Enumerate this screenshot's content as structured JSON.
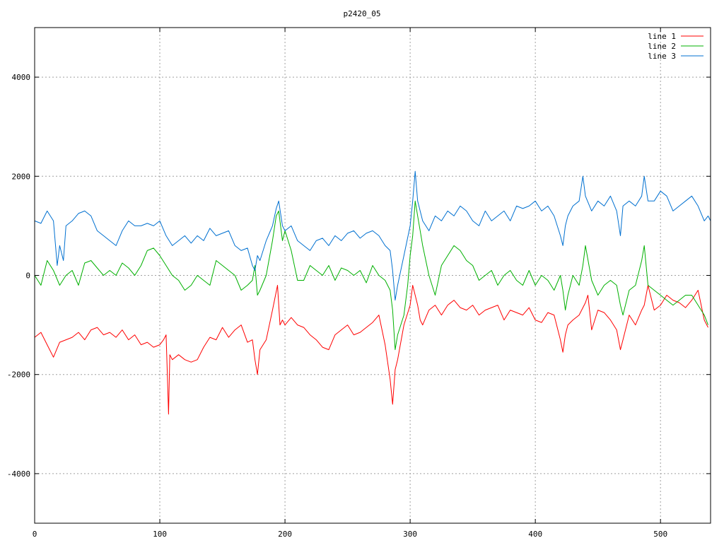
{
  "chart_data": {
    "type": "line",
    "title": "p2420_05",
    "xlabel": "",
    "ylabel": "",
    "xlim": [
      0,
      540
    ],
    "ylim": [
      -5000,
      5000
    ],
    "xticks": [
      0,
      100,
      200,
      300,
      400,
      500
    ],
    "yticks": [
      -4000,
      -2000,
      0,
      2000,
      4000
    ],
    "ytick_labels": [
      "-4000",
      "-2000",
      "0",
      "2000",
      "4000"
    ],
    "grid": true,
    "legend": "top-right",
    "series": [
      {
        "name": "line 1",
        "color": "#ff0000",
        "x": [
          0,
          5,
          10,
          15,
          20,
          25,
          30,
          35,
          40,
          45,
          50,
          55,
          60,
          65,
          70,
          75,
          80,
          85,
          90,
          95,
          100,
          103,
          105,
          106,
          107,
          108,
          110,
          115,
          120,
          125,
          130,
          135,
          140,
          145,
          150,
          155,
          160,
          165,
          170,
          174,
          176,
          178,
          180,
          185,
          190,
          194,
          196,
          198,
          200,
          205,
          210,
          215,
          220,
          225,
          230,
          235,
          240,
          245,
          250,
          255,
          260,
          265,
          270,
          275,
          280,
          284,
          286,
          288,
          290,
          295,
          300,
          302,
          304,
          306,
          308,
          310,
          315,
          320,
          325,
          330,
          335,
          340,
          345,
          350,
          355,
          360,
          365,
          370,
          375,
          380,
          385,
          390,
          395,
          400,
          405,
          410,
          415,
          420,
          422,
          424,
          426,
          430,
          435,
          440,
          442,
          445,
          450,
          455,
          460,
          465,
          468,
          470,
          475,
          480,
          485,
          487,
          490,
          495,
          500,
          505,
          510,
          515,
          520,
          525,
          530,
          535,
          538
        ],
        "y": [
          -1250,
          -1150,
          -1400,
          -1650,
          -1350,
          -1300,
          -1250,
          -1150,
          -1300,
          -1100,
          -1050,
          -1200,
          -1150,
          -1250,
          -1100,
          -1300,
          -1200,
          -1400,
          -1350,
          -1450,
          -1400,
          -1300,
          -1200,
          -2000,
          -2800,
          -1600,
          -1700,
          -1600,
          -1700,
          -1750,
          -1700,
          -1450,
          -1250,
          -1300,
          -1050,
          -1250,
          -1100,
          -1000,
          -1350,
          -1300,
          -1700,
          -2000,
          -1500,
          -1300,
          -700,
          -200,
          -1000,
          -900,
          -1000,
          -850,
          -1000,
          -1050,
          -1200,
          -1300,
          -1450,
          -1500,
          -1200,
          -1100,
          -1000,
          -1200,
          -1150,
          -1050,
          -950,
          -800,
          -1400,
          -2100,
          -2600,
          -1900,
          -1700,
          -1000,
          -600,
          -200,
          -400,
          -600,
          -900,
          -1000,
          -700,
          -600,
          -800,
          -600,
          -500,
          -650,
          -700,
          -600,
          -800,
          -700,
          -650,
          -600,
          -900,
          -700,
          -750,
          -800,
          -650,
          -900,
          -950,
          -750,
          -800,
          -1300,
          -1550,
          -1200,
          -1000,
          -900,
          -800,
          -550,
          -400,
          -1100,
          -700,
          -750,
          -900,
          -1100,
          -1500,
          -1300,
          -800,
          -1000,
          -700,
          -600,
          -200,
          -700,
          -600,
          -400,
          -500,
          -550,
          -650,
          -500,
          -300,
          -900,
          -1050
        ]
      },
      {
        "name": "line 2",
        "color": "#00b000",
        "x": [
          0,
          5,
          10,
          15,
          20,
          25,
          30,
          35,
          40,
          45,
          50,
          55,
          60,
          65,
          70,
          75,
          80,
          85,
          90,
          95,
          100,
          105,
          110,
          115,
          120,
          125,
          130,
          135,
          140,
          145,
          150,
          155,
          160,
          165,
          170,
          174,
          176,
          178,
          180,
          185,
          190,
          193,
          195,
          198,
          200,
          205,
          210,
          215,
          220,
          225,
          230,
          235,
          240,
          245,
          250,
          255,
          260,
          265,
          270,
          275,
          280,
          284,
          286,
          288,
          290,
          295,
          298,
          300,
          302,
          304,
          306,
          308,
          310,
          315,
          320,
          325,
          330,
          335,
          340,
          345,
          350,
          355,
          360,
          365,
          370,
          375,
          380,
          385,
          390,
          395,
          400,
          405,
          410,
          415,
          420,
          422,
          424,
          426,
          430,
          435,
          438,
          440,
          445,
          450,
          455,
          460,
          465,
          468,
          470,
          475,
          480,
          485,
          487,
          490,
          495,
          500,
          505,
          510,
          515,
          520,
          525,
          530,
          535,
          538
        ],
        "y": [
          0,
          -200,
          300,
          100,
          -200,
          0,
          100,
          -200,
          250,
          300,
          150,
          0,
          100,
          0,
          250,
          150,
          0,
          200,
          500,
          550,
          400,
          200,
          0,
          -100,
          -300,
          -200,
          0,
          -100,
          -200,
          300,
          200,
          100,
          0,
          -300,
          -200,
          -100,
          200,
          -400,
          -300,
          0,
          700,
          1200,
          1300,
          700,
          900,
          500,
          -100,
          -100,
          200,
          100,
          0,
          200,
          -100,
          150,
          100,
          0,
          100,
          -150,
          200,
          0,
          -100,
          -300,
          -700,
          -1500,
          -1200,
          -800,
          -200,
          400,
          800,
          1500,
          1200,
          900,
          600,
          0,
          -400,
          200,
          400,
          600,
          500,
          300,
          200,
          -100,
          0,
          100,
          -200,
          0,
          100,
          -100,
          -200,
          100,
          -200,
          0,
          -100,
          -300,
          0,
          -300,
          -700,
          -400,
          0,
          -200,
          200,
          600,
          -100,
          -400,
          -200,
          -100,
          -200,
          -600,
          -800,
          -300,
          -200,
          300,
          600,
          -200,
          -300,
          -400,
          -500,
          -600,
          -500,
          -400,
          -400,
          -600,
          -800,
          -1000
        ]
      },
      {
        "name": "line 3",
        "color": "#0070d0",
        "x": [
          0,
          5,
          10,
          15,
          18,
          20,
          23,
          25,
          30,
          35,
          40,
          45,
          50,
          55,
          60,
          65,
          70,
          75,
          80,
          85,
          90,
          95,
          100,
          105,
          110,
          115,
          120,
          125,
          130,
          135,
          140,
          145,
          150,
          155,
          160,
          165,
          170,
          174,
          176,
          178,
          180,
          185,
          190,
          193,
          195,
          198,
          200,
          205,
          210,
          215,
          220,
          225,
          230,
          235,
          240,
          245,
          250,
          255,
          260,
          265,
          270,
          275,
          280,
          284,
          286,
          288,
          290,
          295,
          300,
          302,
          304,
          306,
          310,
          315,
          320,
          325,
          330,
          335,
          340,
          345,
          350,
          355,
          360,
          365,
          370,
          375,
          380,
          385,
          390,
          395,
          400,
          405,
          410,
          415,
          420,
          422,
          424,
          426,
          430,
          435,
          438,
          440,
          445,
          450,
          455,
          460,
          465,
          468,
          470,
          475,
          480,
          485,
          487,
          490,
          495,
          500,
          505,
          510,
          515,
          520,
          525,
          530,
          535,
          538,
          540
        ],
        "y": [
          1100,
          1050,
          1300,
          1100,
          200,
          600,
          300,
          1000,
          1100,
          1250,
          1300,
          1200,
          900,
          800,
          700,
          600,
          900,
          1100,
          1000,
          1000,
          1050,
          1000,
          1100,
          800,
          600,
          700,
          800,
          650,
          800,
          700,
          950,
          800,
          850,
          900,
          600,
          500,
          550,
          200,
          100,
          400,
          300,
          700,
          1000,
          1350,
          1500,
          1000,
          900,
          1000,
          700,
          600,
          500,
          700,
          750,
          600,
          800,
          700,
          850,
          900,
          750,
          850,
          900,
          800,
          600,
          500,
          100,
          -500,
          -200,
          400,
          1000,
          1500,
          2100,
          1500,
          1100,
          900,
          1200,
          1100,
          1300,
          1200,
          1400,
          1300,
          1100,
          1000,
          1300,
          1100,
          1200,
          1300,
          1100,
          1400,
          1350,
          1400,
          1500,
          1300,
          1400,
          1200,
          800,
          600,
          1000,
          1200,
          1400,
          1500,
          2000,
          1600,
          1300,
          1500,
          1400,
          1600,
          1300,
          800,
          1400,
          1500,
          1400,
          1600,
          2000,
          1500,
          1500,
          1700,
          1600,
          1300,
          1400,
          1500,
          1600,
          1400,
          1100,
          1200,
          1100
        ]
      }
    ]
  }
}
